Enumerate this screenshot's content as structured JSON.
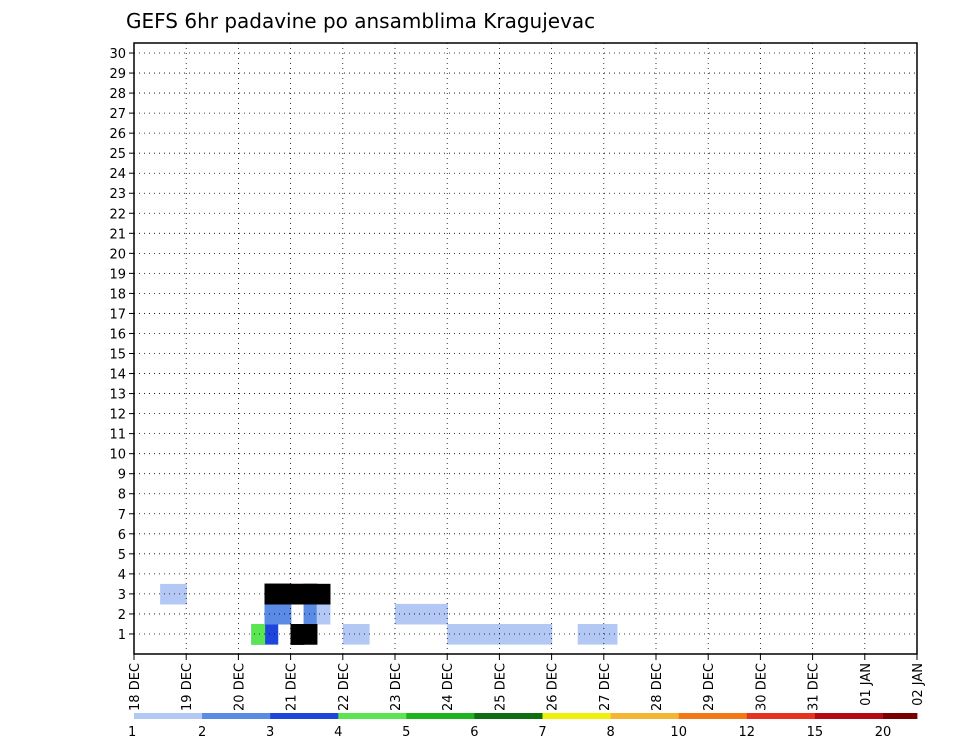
{
  "chart_data": {
    "type": "heatmap",
    "title": "GEFS 6hr padavine po ansamblima Kragujevac",
    "xlabel": "",
    "ylabel": "",
    "x_tick_labels": [
      "18 DEC",
      "19 DEC",
      "20 DEC",
      "21 DEC",
      "22 DEC",
      "23 DEC",
      "24 DEC",
      "25 DEC",
      "26 DEC",
      "27 DEC",
      "28 DEC",
      "29 DEC",
      "30 DEC",
      "31 DEC",
      "01 JAN",
      "02 JAN"
    ],
    "y_tick_labels": [
      "1",
      "2",
      "3",
      "4",
      "5",
      "6",
      "7",
      "8",
      "9",
      "10",
      "11",
      "12",
      "13",
      "14",
      "15",
      "16",
      "17",
      "18",
      "19",
      "20",
      "21",
      "22",
      "23",
      "24",
      "25",
      "26",
      "27",
      "28",
      "29",
      "30"
    ],
    "grid": true,
    "legend_placement": "bottom",
    "colorbar": {
      "thresholds": [
        "1",
        "2",
        "3",
        "4",
        "5",
        "6",
        "7",
        "8",
        "10",
        "12",
        "15",
        "20"
      ],
      "colors": [
        "#b4c8f5",
        "#5a8ce6",
        "#1e46dc",
        "#5ae650",
        "#1eb41e",
        "#0f6e0f",
        "#f0f00a",
        "#f5b432",
        "#f57814",
        "#e6321e",
        "#b40a14",
        "#780000"
      ]
    },
    "x_start": "2018-12-18 00Z",
    "time_step_hours": 6,
    "cells": [
      [
        1,
        9,
        0
      ],
      [
        1,
        10,
        0
      ],
      [
        1,
        10,
        2
      ],
      [
        1,
        12,
        0
      ],
      [
        1,
        16,
        0
      ],
      [
        1,
        17,
        0
      ],
      [
        1,
        24,
        0
      ],
      [
        1,
        25,
        0
      ],
      [
        1,
        26,
        0
      ],
      [
        1,
        27,
        0
      ],
      [
        1,
        28,
        0
      ],
      [
        1,
        29,
        0
      ],
      [
        1,
        30,
        0
      ],
      [
        1,
        31,
        0
      ],
      [
        1,
        34,
        0
      ],
      [
        1,
        35,
        0
      ],
      [
        1,
        36,
        0
      ],
      [
        2,
        10,
        0
      ],
      [
        2,
        11,
        0
      ],
      [
        2,
        10,
        1
      ],
      [
        2,
        11,
        1
      ],
      [
        2,
        13,
        0
      ],
      [
        2,
        13,
        1
      ],
      [
        2,
        14,
        0
      ],
      [
        2,
        20,
        0
      ],
      [
        2,
        21,
        0
      ],
      [
        2,
        22,
        0
      ],
      [
        2,
        23,
        0
      ],
      [
        3,
        2,
        0
      ],
      [
        3,
        3,
        0
      ],
      [
        3,
        10,
        1
      ],
      [
        3,
        11,
        1
      ],
      [
        3,
        10,
        2
      ],
      [
        3,
        11,
        2
      ],
      [
        3,
        11,
        3
      ],
      [
        3,
        10,
        4
      ],
      [
        3,
        11,
        4
      ],
      [
        3,
        10,
        5
      ],
      [
        3,
        10,
        6
      ],
      [
        3,
        11,
        6
      ],
      [
        3,
        11,
        7
      ],
      [
        3,
        10,
        8
      ],
      [
        3,
        11,
        8
      ],
      [
        3,
        11,
        9
      ],
      [
        3,
        10,
        10
      ],
      [
        3,
        11,
        10
      ],
      [
        3,
        12,
        10
      ],
      [
        3,
        10,
        11
      ],
      [
        3,
        11,
        11
      ],
      [
        3,
        12,
        11
      ],
      [
        3,
        13,
        11
      ],
      [
        3,
        10,
        12
      ],
      [
        3,
        11,
        12
      ],
      [
        3,
        13,
        12
      ],
      [
        3,
        10,
        13
      ],
      [
        3,
        11,
        13
      ],
      [
        3,
        10,
        14
      ],
      [
        3,
        11,
        14
      ],
      [
        3,
        13,
        14
      ],
      [
        3,
        10,
        15
      ],
      [
        3,
        13,
        15
      ],
      [
        3,
        10,
        16
      ],
      [
        3,
        11,
        16
      ],
      [
        3,
        13,
        16
      ],
      [
        3,
        14,
        16
      ],
      [
        3,
        10,
        17
      ],
      [
        3,
        11,
        17
      ],
      [
        3,
        13,
        17
      ],
      [
        3,
        14,
        17
      ],
      [
        3,
        10,
        18
      ],
      [
        3,
        11,
        18
      ],
      [
        3,
        12,
        18
      ],
      [
        3,
        10,
        19
      ],
      [
        3,
        11,
        19
      ],
      [
        3,
        12,
        19
      ],
      [
        1,
        9,
        1
      ],
      [
        1,
        9,
        2
      ],
      [
        1,
        9,
        3
      ],
      [
        1,
        12,
        2
      ],
      [
        1,
        12,
        3
      ],
      [
        1,
        13,
        2
      ],
      [
        1,
        13,
        3
      ],
      [
        1,
        12,
        4
      ],
      [
        1,
        12,
        5
      ],
      [
        1,
        12,
        6
      ],
      [
        1,
        12,
        7
      ],
      [
        1,
        12,
        8
      ],
      [
        1,
        12,
        12
      ],
      [
        1,
        12,
        13
      ],
      [
        1,
        13,
        13
      ],
      [
        1,
        12,
        14
      ],
      [
        1,
        12,
        15
      ],
      [
        1,
        13,
        15
      ],
      [
        1,
        12,
        16
      ],
      [
        1,
        12,
        17
      ]
    ]
  }
}
